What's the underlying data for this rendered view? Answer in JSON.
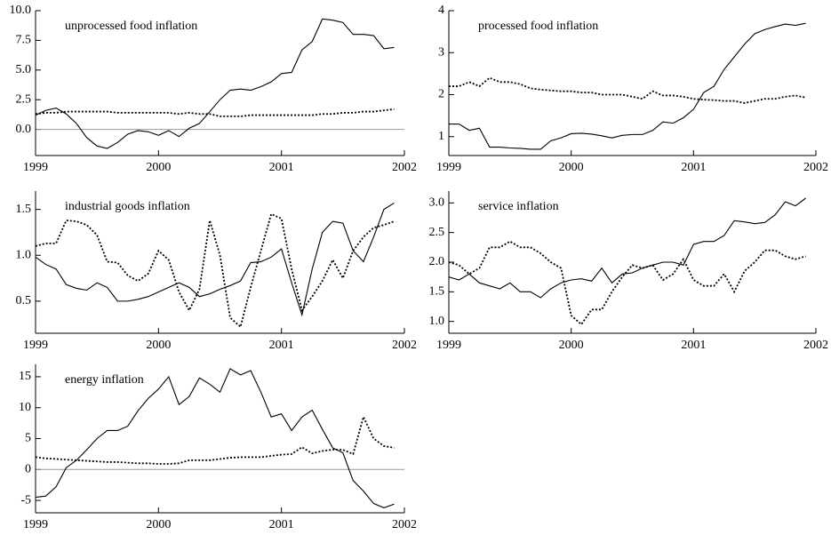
{
  "chart_data": [
    {
      "type": "line",
      "title": "unprocessed food inflation",
      "zero_line": true,
      "x": [
        1999,
        1999.083,
        1999.167,
        1999.25,
        1999.333,
        1999.417,
        1999.5,
        1999.583,
        1999.667,
        1999.75,
        1999.833,
        1999.917,
        2000,
        2000.083,
        2000.167,
        2000.25,
        2000.333,
        2000.417,
        2000.5,
        2000.583,
        2000.667,
        2000.75,
        2000.833,
        2000.917,
        2001,
        2001.083,
        2001.167,
        2001.25,
        2001.333,
        2001.417,
        2001.5,
        2001.583,
        2001.667,
        2001.75,
        2001.833,
        2001.917
      ],
      "xlim": [
        1999,
        2002
      ],
      "xticks": [
        1999,
        2000,
        2001,
        2002
      ],
      "ylim": [
        -2.2,
        10
      ],
      "yticks": [
        {
          "value": 0,
          "label": "0.0"
        },
        2.5,
        {
          "value": 5,
          "label": "5.0"
        },
        7.5,
        {
          "value": 10,
          "label": "10.0"
        }
      ],
      "series": [
        {
          "color": "#000000",
          "dash": "solid",
          "values": [
            1.2,
            1.6,
            1.8,
            1.3,
            0.5,
            -0.7,
            -1.4,
            -1.6,
            -1.1,
            -0.4,
            -0.1,
            -0.2,
            -0.5,
            -0.1,
            -0.6,
            0.1,
            0.5,
            1.5,
            2.5,
            3.3,
            3.4,
            3.3,
            3.6,
            4.0,
            4.7,
            4.8,
            6.7,
            7.4,
            9.3,
            9.2,
            9.0,
            8.0,
            8.0,
            7.9,
            6.8,
            6.9
          ]
        },
        {
          "color": "#000000",
          "dash": "dotted",
          "values": [
            1.3,
            1.4,
            1.4,
            1.5,
            1.5,
            1.5,
            1.5,
            1.5,
            1.4,
            1.4,
            1.4,
            1.4,
            1.4,
            1.4,
            1.3,
            1.4,
            1.3,
            1.3,
            1.1,
            1.1,
            1.1,
            1.2,
            1.2,
            1.2,
            1.2,
            1.2,
            1.2,
            1.2,
            1.3,
            1.3,
            1.4,
            1.4,
            1.5,
            1.5,
            1.6,
            1.7
          ]
        }
      ]
    },
    {
      "type": "line",
      "title": "processed food inflation",
      "x": [
        1999,
        1999.083,
        1999.167,
        1999.25,
        1999.333,
        1999.417,
        1999.5,
        1999.583,
        1999.667,
        1999.75,
        1999.833,
        1999.917,
        2000,
        2000.083,
        2000.167,
        2000.25,
        2000.333,
        2000.417,
        2000.5,
        2000.583,
        2000.667,
        2000.75,
        2000.833,
        2000.917,
        2001,
        2001.083,
        2001.167,
        2001.25,
        2001.333,
        2001.417,
        2001.5,
        2001.583,
        2001.667,
        2001.75,
        2001.833,
        2001.917
      ],
      "xlim": [
        1999,
        2002
      ],
      "xticks": [
        1999,
        2000,
        2001,
        2002
      ],
      "ylim": [
        0.55,
        4
      ],
      "yticks": [
        1,
        2,
        3,
        4
      ],
      "series": [
        {
          "color": "#000000",
          "dash": "solid",
          "values": [
            1.3,
            1.3,
            1.15,
            1.2,
            0.75,
            0.75,
            0.73,
            0.72,
            0.7,
            0.7,
            0.9,
            0.97,
            1.07,
            1.08,
            1.06,
            1.02,
            0.97,
            1.03,
            1.05,
            1.05,
            1.15,
            1.35,
            1.32,
            1.45,
            1.65,
            2.05,
            2.2,
            2.6,
            2.9,
            3.2,
            3.45,
            3.55,
            3.62,
            3.68,
            3.65,
            3.7
          ]
        },
        {
          "color": "#000000",
          "dash": "dotted",
          "values": [
            2.2,
            2.2,
            2.3,
            2.2,
            2.4,
            2.3,
            2.3,
            2.25,
            2.15,
            2.12,
            2.1,
            2.08,
            2.08,
            2.05,
            2.05,
            2.0,
            2.0,
            2.0,
            1.95,
            1.9,
            2.08,
            1.98,
            1.98,
            1.95,
            1.9,
            1.88,
            1.87,
            1.85,
            1.85,
            1.8,
            1.85,
            1.9,
            1.9,
            1.95,
            1.98,
            1.93
          ]
        }
      ]
    },
    {
      "type": "line",
      "title": "industrial goods inflation",
      "x": [
        1999,
        1999.083,
        1999.167,
        1999.25,
        1999.333,
        1999.417,
        1999.5,
        1999.583,
        1999.667,
        1999.75,
        1999.833,
        1999.917,
        2000,
        2000.083,
        2000.167,
        2000.25,
        2000.333,
        2000.417,
        2000.5,
        2000.583,
        2000.667,
        2000.75,
        2000.833,
        2000.917,
        2001,
        2001.083,
        2001.167,
        2001.25,
        2001.333,
        2001.417,
        2001.5,
        2001.583,
        2001.667,
        2001.75,
        2001.833,
        2001.917
      ],
      "xlim": [
        1999,
        2002
      ],
      "xticks": [
        1999,
        2000,
        2001,
        2002
      ],
      "ylim": [
        0.15,
        1.7
      ],
      "yticks": [
        0.5,
        {
          "value": 1,
          "label": "1.0"
        },
        1.5
      ],
      "series": [
        {
          "color": "#000000",
          "dash": "solid",
          "values": [
            0.98,
            0.9,
            0.85,
            0.68,
            0.64,
            0.62,
            0.7,
            0.65,
            0.5,
            0.5,
            0.52,
            0.55,
            0.6,
            0.65,
            0.7,
            0.65,
            0.55,
            0.58,
            0.63,
            0.67,
            0.72,
            0.92,
            0.93,
            0.98,
            1.07,
            0.7,
            0.35,
            0.85,
            1.25,
            1.37,
            1.35,
            1.05,
            0.93,
            1.2,
            1.5,
            1.57
          ]
        },
        {
          "color": "#000000",
          "dash": "dotted",
          "values": [
            1.1,
            1.13,
            1.13,
            1.38,
            1.37,
            1.33,
            1.22,
            0.93,
            0.92,
            0.78,
            0.72,
            0.8,
            1.05,
            0.95,
            0.6,
            0.4,
            0.63,
            1.38,
            1.0,
            0.32,
            0.22,
            0.65,
            1.05,
            1.45,
            1.4,
            0.85,
            0.4,
            0.55,
            0.72,
            0.95,
            0.75,
            1.05,
            1.2,
            1.3,
            1.33,
            1.37
          ]
        }
      ]
    },
    {
      "type": "line",
      "title": "service inflation",
      "x": [
        1999,
        1999.083,
        1999.167,
        1999.25,
        1999.333,
        1999.417,
        1999.5,
        1999.583,
        1999.667,
        1999.75,
        1999.833,
        1999.917,
        2000,
        2000.083,
        2000.167,
        2000.25,
        2000.333,
        2000.417,
        2000.5,
        2000.583,
        2000.667,
        2000.75,
        2000.833,
        2000.917,
        2001,
        2001.083,
        2001.167,
        2001.25,
        2001.333,
        2001.417,
        2001.5,
        2001.583,
        2001.667,
        2001.75,
        2001.833,
        2001.917
      ],
      "xlim": [
        1999,
        2002
      ],
      "xticks": [
        1999,
        2000,
        2001,
        2002
      ],
      "ylim": [
        0.8,
        3.2
      ],
      "yticks": [
        {
          "value": 1,
          "label": "1.0"
        },
        1.5,
        {
          "value": 2,
          "label": "2.0"
        },
        2.5,
        {
          "value": 3,
          "label": "3.0"
        }
      ],
      "series": [
        {
          "color": "#000000",
          "dash": "solid",
          "values": [
            1.75,
            1.7,
            1.8,
            1.65,
            1.6,
            1.55,
            1.65,
            1.5,
            1.5,
            1.4,
            1.55,
            1.65,
            1.7,
            1.72,
            1.68,
            1.9,
            1.65,
            1.8,
            1.82,
            1.9,
            1.95,
            2.0,
            2.0,
            1.95,
            2.3,
            2.35,
            2.35,
            2.45,
            2.7,
            2.68,
            2.65,
            2.67,
            2.8,
            3.02,
            2.95,
            3.08
          ]
        },
        {
          "color": "#000000",
          "dash": "dotted",
          "values": [
            2.0,
            1.95,
            1.8,
            1.9,
            2.25,
            2.25,
            2.35,
            2.25,
            2.25,
            2.15,
            2.0,
            1.9,
            1.1,
            0.95,
            1.2,
            1.2,
            1.5,
            1.75,
            1.95,
            1.9,
            1.95,
            1.7,
            1.8,
            2.05,
            1.7,
            1.6,
            1.6,
            1.8,
            1.5,
            1.85,
            2.0,
            2.2,
            2.2,
            2.1,
            2.05,
            2.1
          ]
        }
      ]
    },
    {
      "type": "line",
      "title": "energy inflation",
      "zero_line": true,
      "x": [
        1999,
        1999.083,
        1999.167,
        1999.25,
        1999.333,
        1999.417,
        1999.5,
        1999.583,
        1999.667,
        1999.75,
        1999.833,
        1999.917,
        2000,
        2000.083,
        2000.167,
        2000.25,
        2000.333,
        2000.417,
        2000.5,
        2000.583,
        2000.667,
        2000.75,
        2000.833,
        2000.917,
        2001,
        2001.083,
        2001.167,
        2001.25,
        2001.333,
        2001.417,
        2001.5,
        2001.583,
        2001.667,
        2001.75,
        2001.833,
        2001.917
      ],
      "xlim": [
        1999,
        2002
      ],
      "xticks": [
        1999,
        2000,
        2001,
        2002
      ],
      "ylim": [
        -7,
        17
      ],
      "yticks": [
        -5,
        0,
        5,
        10,
        15
      ],
      "series": [
        {
          "color": "#000000",
          "dash": "solid",
          "values": [
            -4.5,
            -4.3,
            -2.8,
            0.3,
            1.5,
            3.2,
            5,
            6.3,
            6.3,
            7,
            9.5,
            11.5,
            13,
            15,
            10.5,
            11.8,
            14.8,
            13.8,
            12.5,
            16.3,
            15.3,
            16,
            12.5,
            8.5,
            9,
            6.3,
            8.5,
            9.6,
            6.5,
            3.5,
            2.7,
            -1.8,
            -3.5,
            -5.5,
            -6.2,
            -5.6
          ]
        },
        {
          "color": "#000000",
          "dash": "dotted",
          "values": [
            2,
            1.8,
            1.7,
            1.6,
            1.5,
            1.4,
            1.3,
            1.2,
            1.2,
            1.1,
            1.0,
            1.0,
            0.9,
            0.9,
            1.0,
            1.5,
            1.5,
            1.5,
            1.7,
            1.9,
            2.0,
            2.0,
            2.0,
            2.2,
            2.4,
            2.5,
            3.6,
            2.6,
            3.0,
            3.2,
            3.2,
            2.5,
            8.5,
            5,
            3.8,
            3.5
          ]
        }
      ]
    }
  ]
}
